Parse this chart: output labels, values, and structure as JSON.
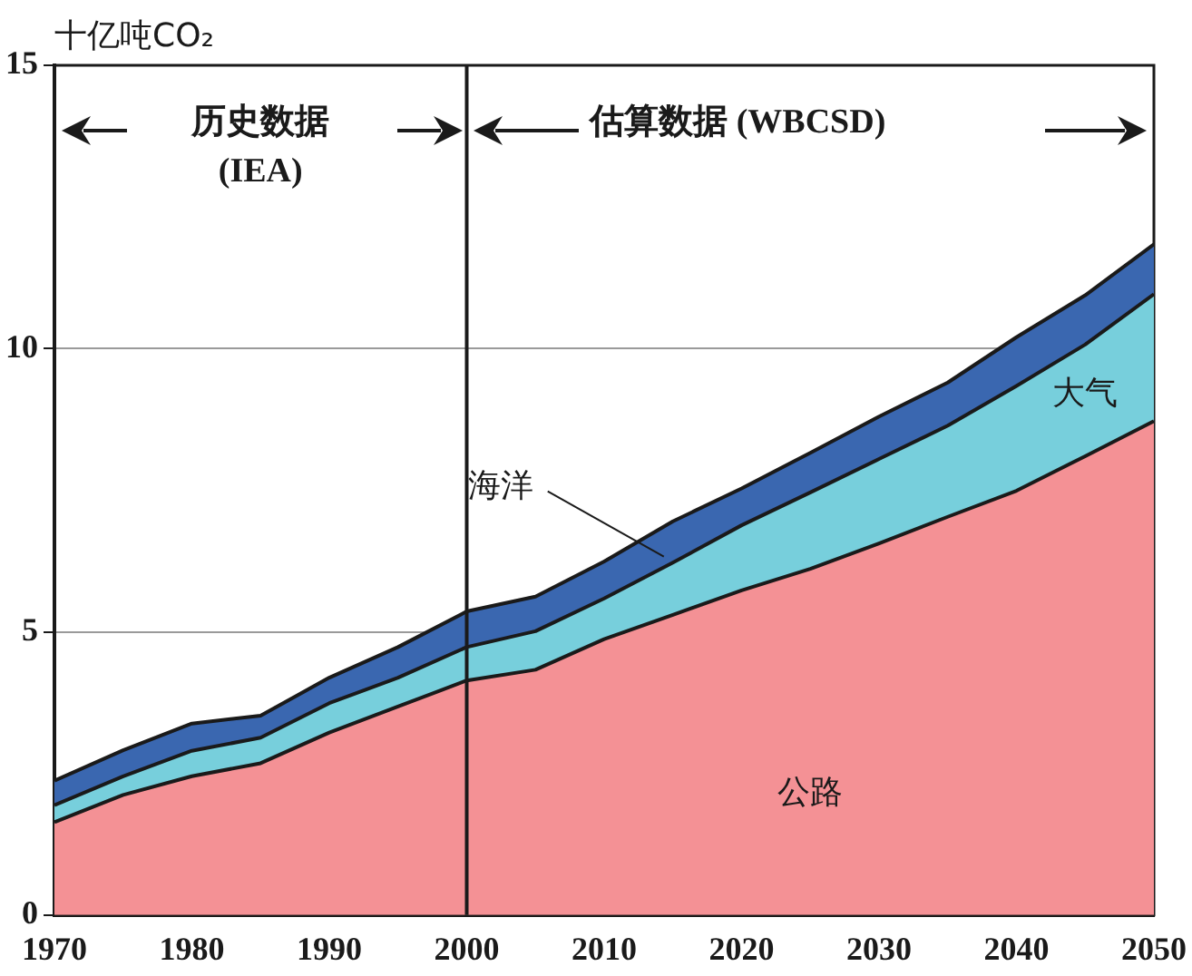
{
  "chart_data": {
    "type": "area",
    "stacked": true,
    "ylabel": "十亿吨CO₂",
    "x": [
      1970,
      1975,
      1980,
      1985,
      1990,
      1995,
      2000,
      2005,
      2010,
      2015,
      2020,
      2025,
      2030,
      2035,
      2040,
      2045,
      2050
    ],
    "series": [
      {
        "name": "公路",
        "color": "#f49195",
        "values": [
          1.64,
          2.12,
          2.45,
          2.68,
          3.22,
          3.68,
          4.14,
          4.33,
          4.87,
          5.3,
          5.73,
          6.11,
          6.56,
          7.03,
          7.49,
          8.1,
          8.72
        ]
      },
      {
        "name": "大气",
        "color": "#77cfdc",
        "values": [
          0.3,
          0.33,
          0.45,
          0.45,
          0.52,
          0.51,
          0.59,
          0.68,
          0.72,
          0.92,
          1.15,
          1.35,
          1.49,
          1.61,
          1.85,
          1.97,
          2.24
        ]
      },
      {
        "name": "海洋",
        "color": "#3a67b0",
        "values": [
          0.43,
          0.46,
          0.48,
          0.39,
          0.45,
          0.54,
          0.63,
          0.61,
          0.65,
          0.73,
          0.65,
          0.7,
          0.75,
          0.76,
          0.86,
          0.87,
          0.88
        ]
      }
    ],
    "xlim": [
      1970,
      2050
    ],
    "xticks": [
      1970,
      1980,
      1990,
      2000,
      2010,
      2020,
      2030,
      2040,
      2050
    ],
    "ylim": [
      0,
      15
    ],
    "yticks": [
      0,
      5,
      10,
      15
    ],
    "grid": "y",
    "ref_lines": [
      {
        "axis": "x",
        "value": 2000,
        "color": "#1a1a1a"
      }
    ],
    "annotations": [
      "历史数据\n(IEA)",
      "估算数据 (WBCSD)"
    ]
  }
}
